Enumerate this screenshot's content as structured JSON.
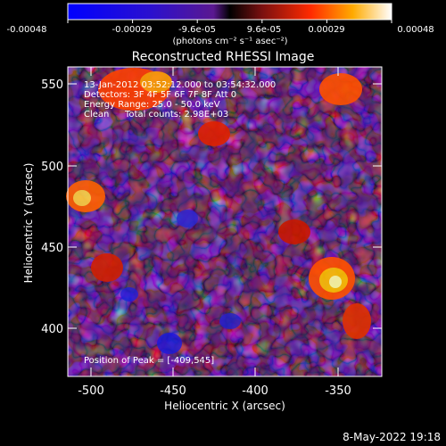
{
  "colorbar": {
    "ticks": [
      "-0.00048",
      "-0.00029",
      "-9.6e-05",
      "9.6e-05",
      "0.00029",
      "0.00048"
    ],
    "units_text": "(photons cm⁻² s⁻¹ asec⁻²)",
    "range": [
      -0.00048,
      0.00048
    ]
  },
  "title": "Reconstructed RHESSI Image",
  "info": {
    "time_range": "13-Jan-2012 03:52:12.000 to 03:54:32.000",
    "detectors": "Detectors: 3F 4F 5F 6F 7F 8F Att 0",
    "energy_range": "Energy Range: 25.0 - 50.0 keV",
    "method": "Clean",
    "total_counts": "Total counts: 2.98E+03",
    "peak": "Position of Peak = [-409,545]"
  },
  "axes": {
    "xlabel": "Heliocentric X (arcsec)",
    "ylabel": "Heliocentric Y (arcsec)",
    "xticks": [
      "-500",
      "-450",
      "-400",
      "-350"
    ],
    "yticks": [
      "400",
      "450",
      "500",
      "550"
    ],
    "xlim": [
      -512,
      -322
    ],
    "ylim": [
      368,
      563
    ]
  },
  "timestamp": "8-May-2022 19:18",
  "colors": {
    "bg": "#000000",
    "text": "#ffffff",
    "low": "#1a1acc",
    "mid": "#5a24a8",
    "high": "#ff5a00",
    "peak": "#ffffe0"
  }
}
